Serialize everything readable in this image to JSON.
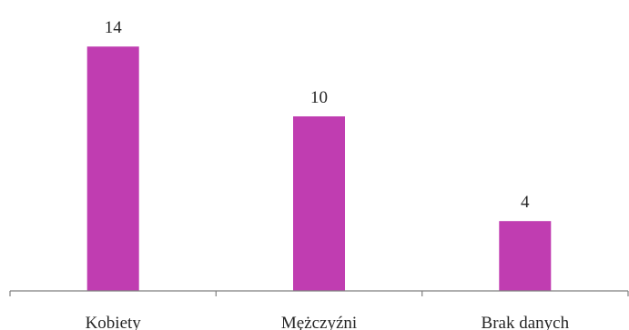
{
  "chart_data": {
    "type": "bar",
    "categories": [
      "Kobiety",
      "Mężczyźni",
      "Brak danych"
    ],
    "values": [
      14,
      10,
      4
    ],
    "data_labels": [
      "14",
      "10",
      "4"
    ],
    "title": "",
    "xlabel": "",
    "ylabel": "",
    "ylim": [
      0,
      16
    ],
    "grid": false,
    "legend": "none",
    "bar_color": "#c03db1"
  }
}
